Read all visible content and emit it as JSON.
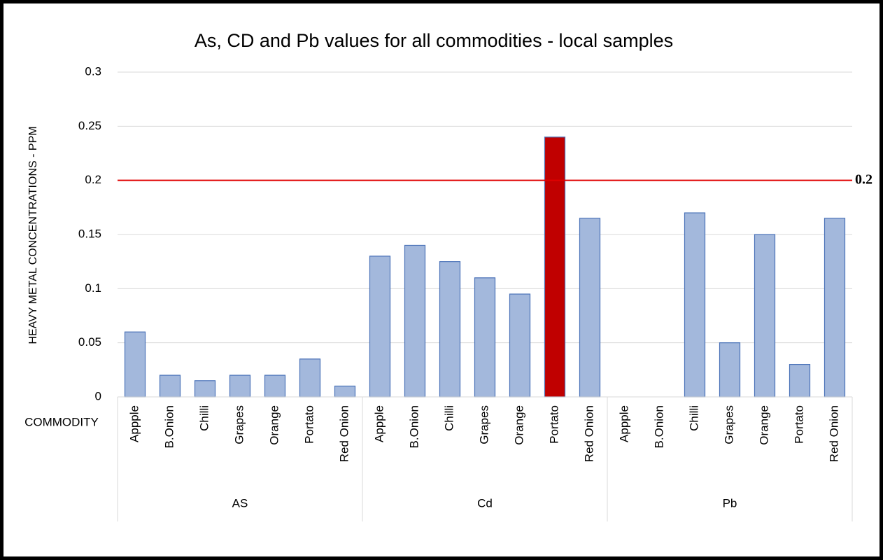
{
  "chart_data": {
    "type": "bar",
    "title": "As, CD and Pb values for all commodities - local samples",
    "y_label": "HEAVY METAL CONCENTRATIONS - PPM",
    "x_label": "COMMODITY",
    "ylim": [
      0,
      0.3
    ],
    "yticks": [
      0,
      0.05,
      0.1,
      0.15,
      0.2,
      0.25,
      0.3
    ],
    "grid": true,
    "bar_border": "#4a72b8",
    "groups": [
      {
        "name": "AS",
        "categories": [
          "Appple",
          "B.Onion",
          "Chilli",
          "Grapes",
          "Orange",
          "Portato",
          "Red Onion"
        ],
        "values": [
          0.06,
          0.02,
          0.015,
          0.02,
          0.02,
          0.035,
          0.01
        ],
        "colors": [
          "#a3b8dc",
          "#a3b8dc",
          "#a3b8dc",
          "#a3b8dc",
          "#a3b8dc",
          "#a3b8dc",
          "#a3b8dc"
        ]
      },
      {
        "name": "Cd",
        "categories": [
          "Appple",
          "B.Onion",
          "Chilli",
          "Grapes",
          "Orange",
          "Portato",
          "Red Onion"
        ],
        "values": [
          0.13,
          0.14,
          0.125,
          0.11,
          0.095,
          0.24,
          0.165
        ],
        "colors": [
          "#a3b8dc",
          "#a3b8dc",
          "#a3b8dc",
          "#a3b8dc",
          "#a3b8dc",
          "#c00000",
          "#a3b8dc"
        ]
      },
      {
        "name": "Pb",
        "categories": [
          "Appple",
          "B.Onion",
          "Chilli",
          "Grapes",
          "Orange",
          "Portato",
          "Red Onion"
        ],
        "values": [
          0,
          0,
          0.17,
          0.05,
          0.15,
          0.03,
          0.165
        ],
        "colors": [
          "#a3b8dc",
          "#a3b8dc",
          "#a3b8dc",
          "#a3b8dc",
          "#a3b8dc",
          "#a3b8dc",
          "#a3b8dc"
        ]
      }
    ],
    "reference_lines": [
      {
        "value": 0.2,
        "color": "#e00000"
      }
    ]
  }
}
